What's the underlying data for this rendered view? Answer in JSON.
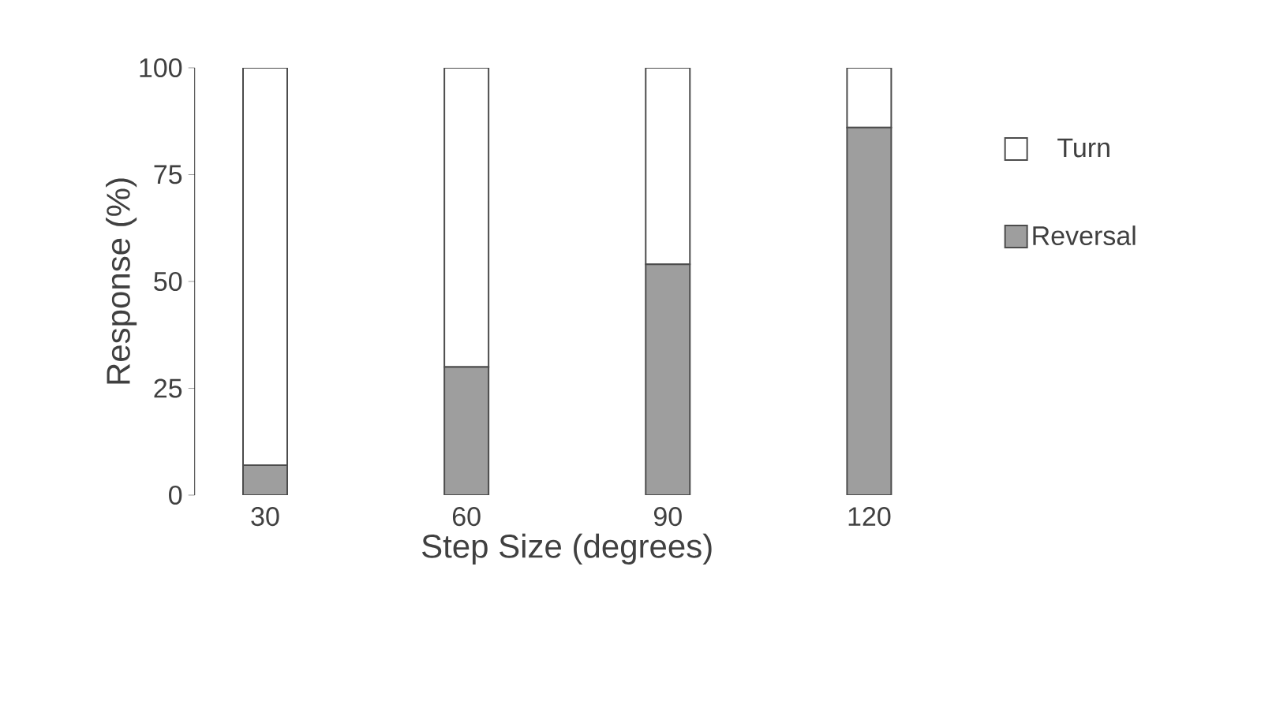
{
  "chart_data": {
    "type": "bar",
    "stacked": true,
    "xlabel": "Step Size (degrees)",
    "ylabel": "Response (%)",
    "categories": [
      "30",
      "60",
      "90",
      "120"
    ],
    "series": [
      {
        "name": "Reversal",
        "color": "#9e9e9e",
        "values": [
          7,
          30,
          54,
          86
        ]
      },
      {
        "name": "Turn",
        "color": "#ffffff",
        "values": [
          93,
          70,
          46,
          14
        ]
      }
    ],
    "ylim": [
      0,
      100
    ],
    "yticks": [
      0,
      25,
      50,
      75,
      100
    ],
    "legend": "right"
  }
}
